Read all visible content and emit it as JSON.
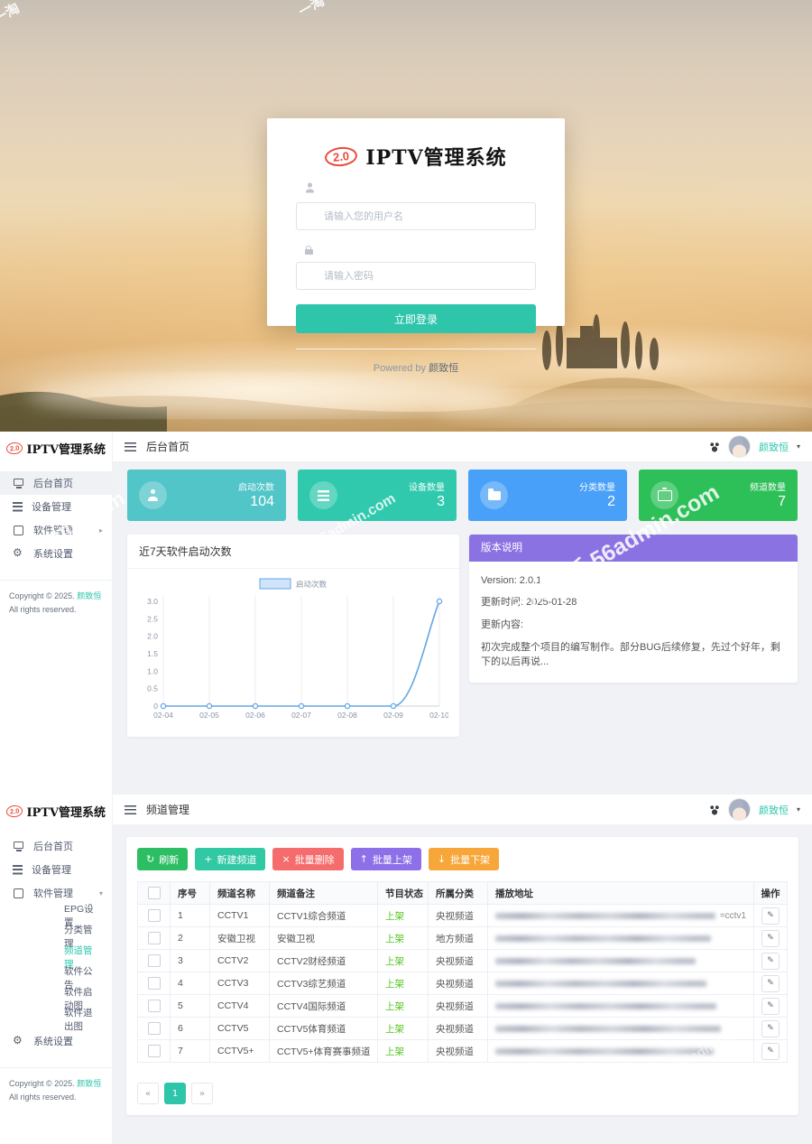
{
  "colors": {
    "accent": "#2fc5ab",
    "logo_red": "#e74c3c",
    "version_purple": "#8b72e2",
    "status_green": "#52c41a",
    "content_bg": "#f0f2f6"
  },
  "watermarks": [
    "一淘",
    "一淘",
    "min.com",
    "56admin.com",
    "一淘模板 56admin.com",
    "一淘",
    "56admin.com",
    "一淘"
  ],
  "login": {
    "logo_badge": "2.0",
    "logo_title": "IPTV管理系统",
    "username_placeholder": "请输入您的用户名",
    "password_placeholder": "请输入密码",
    "login_button": "立即登录",
    "powered_by": "Powered by",
    "author": "颜致恒"
  },
  "user": {
    "name": "颜致恒",
    "caret": "▾"
  },
  "sidebar_common": {
    "logo_badge": "2.0",
    "logo_title": "IPTV管理系统",
    "copyright_prefix": "Copyright © 2025.",
    "copyright_author": "颜致恒",
    "copyright_suffix": "All rights reserved."
  },
  "dashboard": {
    "header_title": "后台首页",
    "menu": [
      {
        "label": "后台首页",
        "icon": "monitor-icon",
        "active_bg": true
      },
      {
        "label": "设备管理",
        "icon": "devices-icon"
      },
      {
        "label": "软件管理",
        "icon": "app-icon",
        "caret": "▸"
      },
      {
        "label": "系统设置",
        "icon": "gear-icon"
      }
    ],
    "stats": [
      {
        "label": "启动次数",
        "value": "104",
        "icon": "user-icon",
        "color": "#52c5c9"
      },
      {
        "label": "设备数量",
        "value": "3",
        "icon": "devices-icon",
        "color": "#30c9ad"
      },
      {
        "label": "分类数量",
        "value": "2",
        "icon": "folder-icon",
        "color": "#49a0f8"
      },
      {
        "label": "频道数量",
        "value": "7",
        "icon": "tv-icon",
        "color": "#2dbf58"
      }
    ],
    "version": {
      "header": "版本说明",
      "version_line": "Version:  2.0.1",
      "updated_line": "更新时间:  2025-01-28",
      "content_label": "更新内容:",
      "content_text": "初次完成整个项目的编写制作。部分BUG后续修复，先过个好年，剩下的以后再说..."
    }
  },
  "chart_data": {
    "type": "line",
    "title": "近7天软件启动次数",
    "x": [
      "02-04",
      "02-05",
      "02-06",
      "02-07",
      "02-08",
      "02-09",
      "02-10"
    ],
    "series": [
      {
        "name": "启动次数",
        "values": [
          0,
          0,
          0,
          0,
          0,
          0,
          3
        ]
      }
    ],
    "xlabel": "",
    "ylabel": "",
    "ylim": [
      0,
      3
    ],
    "ytick_step": 0.5,
    "grid": "vertical",
    "legend_position": "top-center",
    "line_color": "#64a6e3",
    "legend_fill": "#cfe4f8"
  },
  "channels": {
    "header_title": "频道管理",
    "menu": [
      {
        "label": "后台首页",
        "icon": "monitor-icon"
      },
      {
        "label": "设备管理",
        "icon": "devices-icon"
      },
      {
        "label": "软件管理",
        "icon": "app-icon",
        "caret": "▾"
      },
      {
        "label": "EPG设置",
        "sub": true
      },
      {
        "label": "分类管理",
        "sub": true
      },
      {
        "label": "频道管理",
        "sub": true,
        "active": true
      },
      {
        "label": "软件公告",
        "sub": true
      },
      {
        "label": "软件启动图",
        "sub": true
      },
      {
        "label": "软件退出图",
        "sub": true
      },
      {
        "label": "系统设置",
        "icon": "gear-icon"
      }
    ],
    "toolbar": [
      {
        "label": "刷新",
        "icon": "refresh-icon",
        "glyph": "↻",
        "color": "#2dbe64"
      },
      {
        "label": "新建频道",
        "icon": "plus-icon",
        "glyph": "+",
        "color": "#31c8a4"
      },
      {
        "label": "批量删除",
        "icon": "close-icon",
        "glyph": "×",
        "color": "#f56c6c"
      },
      {
        "label": "批量上架",
        "icon": "arrow-up-icon",
        "glyph": "↑",
        "color": "#8d6fe8"
      },
      {
        "label": "批量下架",
        "icon": "arrow-down-icon",
        "glyph": "↓",
        "color": "#f7a73a"
      }
    ],
    "table": {
      "columns": [
        "序号",
        "频道名称",
        "频道备注",
        "节目状态",
        "所属分类",
        "播放地址",
        "操作"
      ],
      "rows": [
        {
          "no": "1",
          "name": "CCTV1",
          "note": "CCTV1综合频道",
          "status": "上架",
          "category": "央视频道",
          "url_obscured": true,
          "url_suffix": "=cctv1"
        },
        {
          "no": "2",
          "name": "安徽卫视",
          "note": "安徽卫视",
          "status": "上架",
          "category": "地方频道",
          "url_obscured": true
        },
        {
          "no": "3",
          "name": "CCTV2",
          "note": "CCTV2财经频道",
          "status": "上架",
          "category": "央视频道",
          "url_obscured": true
        },
        {
          "no": "4",
          "name": "CCTV3",
          "note": "CCTV3综艺频道",
          "status": "上架",
          "category": "央视频道",
          "url_obscured": true
        },
        {
          "no": "5",
          "name": "CCTV4",
          "note": "CCTV4国际频道",
          "status": "上架",
          "category": "央视频道",
          "url_obscured": true
        },
        {
          "no": "6",
          "name": "CCTV5",
          "note": "CCTV5体育频道",
          "status": "上架",
          "category": "央视频道",
          "url_obscured": true
        },
        {
          "no": "7",
          "name": "CCTV5+",
          "note": "CCTV5+体育赛事频道",
          "status": "上架",
          "category": "央视频道",
          "url_obscured": true
        }
      ]
    },
    "pagination": {
      "prev": "«",
      "page": "1",
      "next": "»"
    }
  }
}
